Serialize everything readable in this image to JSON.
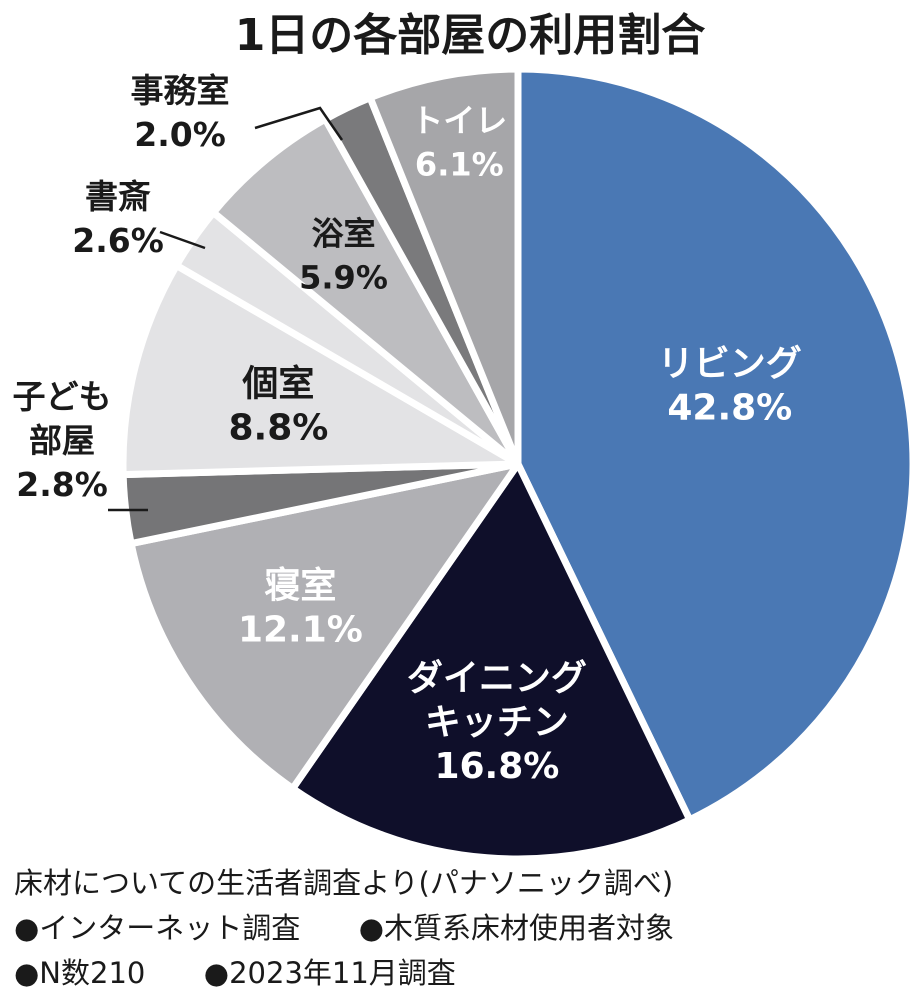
{
  "chart_data": {
    "type": "pie",
    "title": "1日の各部屋の利用割合",
    "unit": "%",
    "slices": [
      {
        "name": "リビング",
        "value": 42.8,
        "color": "#4a78b4",
        "text_color": "#ffffff",
        "label_lines": [
          "リビング"
        ],
        "value_label": "42.8%"
      },
      {
        "name": "ダイニングキッチン",
        "value": 16.8,
        "color": "#0f0f2a",
        "text_color": "#ffffff",
        "label_lines": [
          "ダイニング",
          "キッチン"
        ],
        "value_label": "16.8%"
      },
      {
        "name": "寝室",
        "value": 12.1,
        "color": "#b0b0b4",
        "text_color": "#ffffff",
        "label_lines": [
          "寝室"
        ],
        "value_label": "12.1%"
      },
      {
        "name": "子ども部屋",
        "value": 2.8,
        "color": "#757577",
        "text_color": "#1a1a1a",
        "label_lines": [
          "子ども",
          "部屋"
        ],
        "value_label": "2.8%"
      },
      {
        "name": "個室",
        "value": 8.8,
        "color": "#e3e3e5",
        "text_color": "#1a1a1a",
        "label_lines": [
          "個室"
        ],
        "value_label": "8.8%"
      },
      {
        "name": "書斎",
        "value": 2.6,
        "color": "#e3e3e5",
        "text_color": "#1a1a1a",
        "label_lines": [
          "書斎"
        ],
        "value_label": "2.6%"
      },
      {
        "name": "浴室",
        "value": 5.9,
        "color": "#bdbdc0",
        "text_color": "#1a1a1a",
        "label_lines": [
          "浴室"
        ],
        "value_label": "5.9%"
      },
      {
        "name": "事務室",
        "value": 2.0,
        "color": "#7a7a7c",
        "text_color": "#1a1a1a",
        "label_lines": [
          "事務室"
        ],
        "value_label": "2.0%"
      },
      {
        "name": "トイレ",
        "value": 6.1,
        "color": "#a6a6a9",
        "text_color": "#ffffff",
        "label_lines": [
          "トイレ"
        ],
        "value_label": "6.1%"
      }
    ]
  },
  "notes": {
    "source": "床材についての生活者調査より(パナソニック調べ)",
    "bullet1": "●インターネット調査",
    "bullet2": "●木質系床材使用者対象",
    "bullet3": "●N数210",
    "bullet4": "●2023年11月調査"
  }
}
